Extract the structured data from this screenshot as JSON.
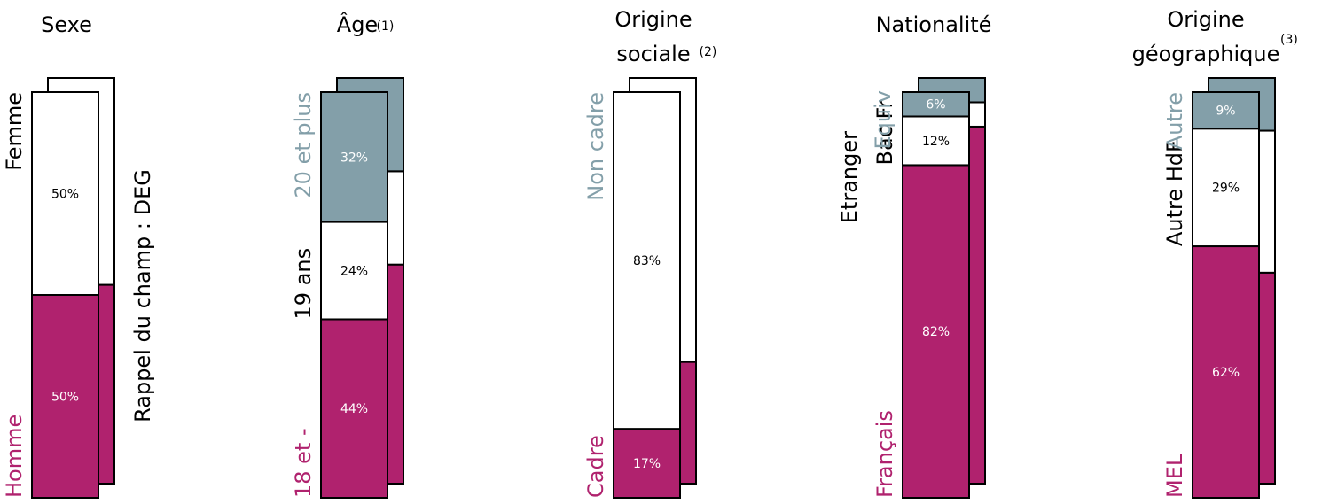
{
  "chart_data": {
    "type": "bar",
    "stacked": true,
    "note": "Stacked 100% bars; each panel shows a front bar and a rear reference bar.",
    "colors": {
      "primary": "#B0226E",
      "secondary": "#839FA9",
      "neutral": "#FFFFFF",
      "outline": "#000000"
    },
    "panels": [
      {
        "title": "Sexe",
        "title_lines": [
          "Sexe"
        ],
        "superscript": "",
        "segments": [
          {
            "label": "Homme",
            "value": 50,
            "value_label": "50%",
            "color": "primary",
            "label_color": "primary"
          },
          {
            "label": "Femme",
            "value": 50,
            "value_label": "50%",
            "color": "neutral",
            "label_color": "black"
          }
        ],
        "rear_segments": [
          {
            "value": 49,
            "color": "primary"
          },
          {
            "value": 51,
            "color": "neutral"
          }
        ],
        "side_text": "Rappel du champ : DEG"
      },
      {
        "title": "Âge",
        "title_lines": [
          "Âge"
        ],
        "superscript": "(1)",
        "segments": [
          {
            "label": "18 et -",
            "value": 44,
            "value_label": "44%",
            "color": "primary",
            "label_color": "primary"
          },
          {
            "label": "19 ans",
            "value": 24,
            "value_label": "24%",
            "color": "neutral",
            "label_color": "black"
          },
          {
            "label": "20 et plus",
            "value": 32,
            "value_label": "32%",
            "color": "secondary",
            "label_color": "secondary"
          }
        ],
        "rear_segments": [
          {
            "value": 54,
            "color": "primary"
          },
          {
            "value": 23,
            "color": "neutral"
          },
          {
            "value": 23,
            "color": "secondary"
          }
        ]
      },
      {
        "title": "Origine sociale",
        "title_lines": [
          "Origine",
          "sociale"
        ],
        "superscript": "(2)",
        "segments": [
          {
            "label": "Cadre",
            "value": 17,
            "value_label": "17%",
            "color": "primary",
            "label_color": "primary"
          },
          {
            "label": "Non cadre",
            "value": 83,
            "value_label": "83%",
            "color": "neutral",
            "label_color": "secondary"
          }
        ],
        "rear_segments": [
          {
            "value": 30,
            "color": "primary"
          },
          {
            "value": 70,
            "color": "neutral"
          }
        ]
      },
      {
        "title": "Nationalité",
        "title_lines": [
          "Nationalité"
        ],
        "superscript": "",
        "segments": [
          {
            "label": "Français",
            "value": 82,
            "value_label": "82%",
            "color": "primary",
            "label_color": "primary"
          },
          {
            "label": "Bac Fr",
            "value": 12,
            "value_label": "12%",
            "color": "neutral",
            "label_color": "black"
          },
          {
            "label": "Equiv",
            "value": 6,
            "value_label": "6%",
            "color": "secondary",
            "label_color": "secondary"
          }
        ],
        "rear_segments": [
          {
            "value": 88,
            "color": "primary"
          },
          {
            "value": 6,
            "color": "neutral"
          },
          {
            "value": 6,
            "color": "secondary"
          }
        ],
        "group_label": "Etranger"
      },
      {
        "title": "Origine géographique",
        "title_lines": [
          "Origine",
          "géographique"
        ],
        "superscript": "(3)",
        "segments": [
          {
            "label": "MEL",
            "value": 62,
            "value_label": "62%",
            "color": "primary",
            "label_color": "primary"
          },
          {
            "label": "Autre HdF",
            "value": 29,
            "value_label": "29%",
            "color": "neutral",
            "label_color": "black"
          },
          {
            "label": "Autre",
            "value": 9,
            "value_label": "9%",
            "color": "secondary",
            "label_color": "secondary"
          }
        ],
        "rear_segments": [
          {
            "value": 52,
            "color": "primary"
          },
          {
            "value": 35,
            "color": "neutral"
          },
          {
            "value": 13,
            "color": "secondary"
          }
        ]
      }
    ]
  }
}
